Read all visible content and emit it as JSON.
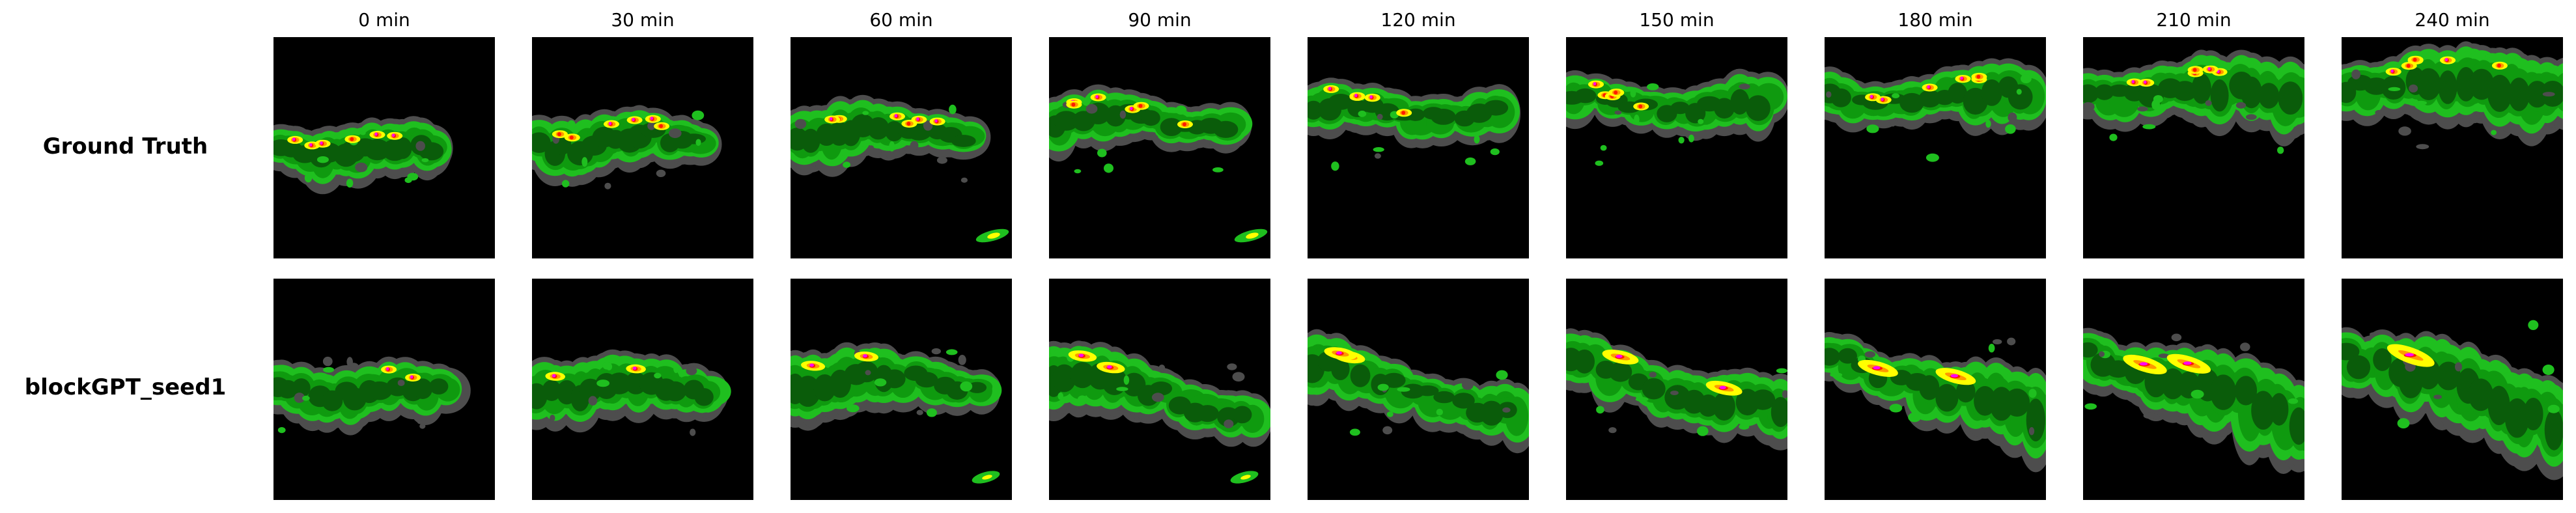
{
  "figure": {
    "time_labels": [
      "0 min",
      "30 min",
      "60 min",
      "90 min",
      "120 min",
      "150 min",
      "180 min",
      "210 min",
      "240 min"
    ],
    "row_labels": [
      "Ground Truth",
      "blockGPT_seed1"
    ],
    "colors": {
      "background": "#000000",
      "gray": "#4d4d4d",
      "green_light": "#1fbf1f",
      "green_mid": "#0f9a0f",
      "green_dark": "#0a5c0a",
      "yellow": "#ffff00",
      "orange": "#ff9900",
      "red": "#ff1a00",
      "magenta": "#ff00ff"
    }
  }
}
